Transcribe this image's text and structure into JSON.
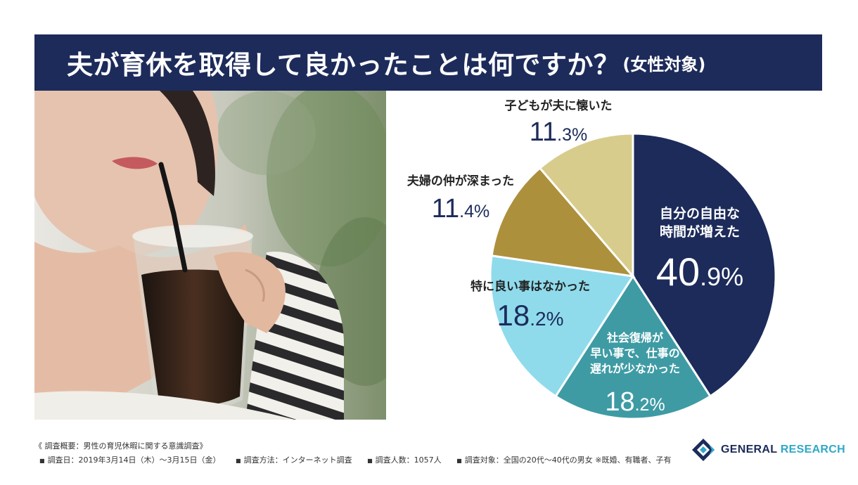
{
  "header": {
    "title": "夫が育休を取得して良かったことは何ですか？",
    "subtitle": "(女性対象)"
  },
  "chart_data": {
    "type": "pie",
    "start_angle_deg": 0,
    "direction": "clockwise",
    "slices": [
      {
        "label": "自分の自由な時間が増えた",
        "label_lines": [
          "自分の自由な",
          "時間が増えた"
        ],
        "value": 40.9,
        "value_int": "40",
        "value_dec": ".9%",
        "color": "#1c2b5a",
        "text_color": "#ffffff"
      },
      {
        "label": "社会復帰が早い事で、仕事の遅れが少なかった",
        "label_lines": [
          "社会復帰が",
          "早い事で、仕事の",
          "遅れが少なかった"
        ],
        "value": 18.2,
        "value_int": "18",
        "value_dec": ".2%",
        "color": "#3e9ba4",
        "text_color": "#ffffff"
      },
      {
        "label": "特に良い事はなかった",
        "label_lines": [
          "特に良い事はなかった"
        ],
        "value": 18.2,
        "value_int": "18",
        "value_dec": ".2%",
        "color": "#8fdbec",
        "text_color": "#1c2b5a"
      },
      {
        "label": "夫婦の仲が深まった",
        "label_lines": [
          "夫婦の仲が深まった"
        ],
        "value": 11.4,
        "value_int": "11",
        "value_dec": ".4%",
        "color": "#ad903c",
        "text_color": "#1c2b5a"
      },
      {
        "label": "子どもが夫に懐いた",
        "label_lines": [
          "子どもが夫に懐いた"
        ],
        "value": 11.3,
        "value_int": "11",
        "value_dec": ".3%",
        "color": "#d8cc8c",
        "text_color": "#1c2b5a"
      }
    ]
  },
  "footer": {
    "note": "《 調査概要：男性の育児休暇に関する意識調査》",
    "details": [
      "調査日：2019年3月14日（木）〜3月15日（金）",
      "調査方法：インターネット調査",
      "調査人数：1057人",
      "調査対象：全国の20代〜40代の男女 ※既婚、有職者、子有"
    ]
  },
  "brand": {
    "name_part1": "GENERAL",
    "name_part2": "RESEARCH",
    "logo_icon": "general-research-logo-icon",
    "colors": {
      "primary": "#1c2b5a",
      "accent": "#2fa8c8"
    }
  }
}
